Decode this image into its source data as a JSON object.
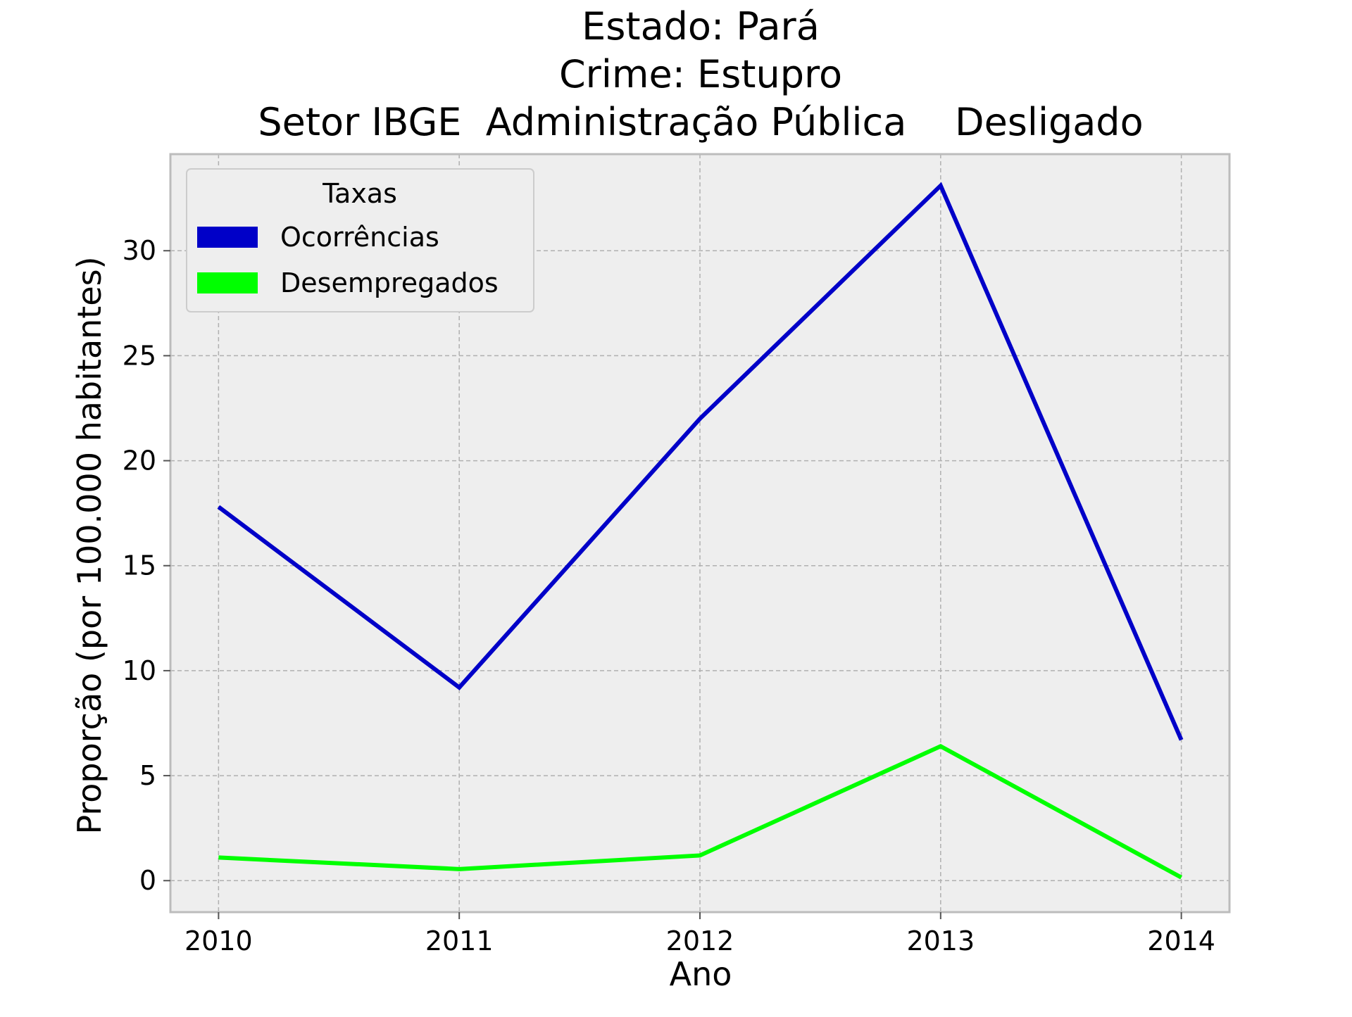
{
  "chart_data": {
    "type": "line",
    "title_lines": [
      "Estado: Pará",
      "Crime: Estupro",
      "Setor IBGE  Administração Pública    Desligado"
    ],
    "xlabel": "Ano",
    "ylabel": "Proporção (por 100.000 habitantes)",
    "x": [
      2010,
      2011,
      2012,
      2013,
      2014
    ],
    "x_tick_labels": [
      "2010",
      "2011",
      "2012",
      "2013",
      "2014"
    ],
    "y_ticks": [
      0,
      5,
      10,
      15,
      20,
      25,
      30
    ],
    "y_tick_labels": [
      "0",
      "5",
      "10",
      "15",
      "20",
      "25",
      "30"
    ],
    "xlim": [
      2009.8,
      2014.2
    ],
    "ylim": [
      -1.5,
      34.6
    ],
    "grid": true,
    "legend": {
      "title": "Taxas",
      "placement": "top-left"
    },
    "series": [
      {
        "name": "Ocorrências",
        "color": "#0000c8",
        "values": [
          17.8,
          9.2,
          22.0,
          33.1,
          6.7
        ]
      },
      {
        "name": "Desempregados",
        "color": "#00ff00",
        "values": [
          1.1,
          0.55,
          1.2,
          6.4,
          0.15
        ]
      }
    ],
    "colors": {
      "plot_background": "#eeeeee",
      "grid": "#b0b0b0",
      "frame": "#bcbcbc"
    }
  }
}
